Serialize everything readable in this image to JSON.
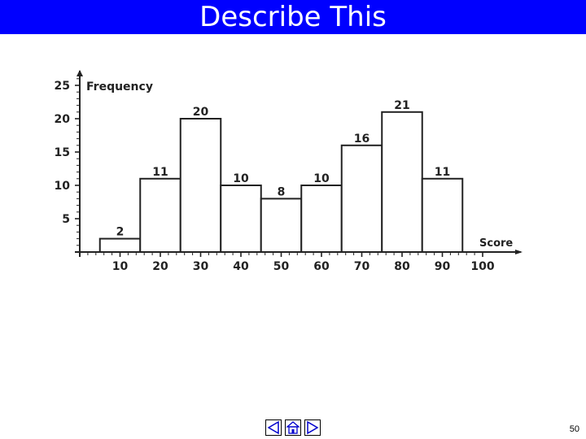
{
  "slide": {
    "title": "Describe This",
    "page_number": "50"
  },
  "nav": {
    "prev_icon": "triangle-left-icon",
    "home_icon": "home-icon",
    "next_icon": "triangle-right-icon"
  },
  "chart_data": {
    "type": "bar",
    "title": "",
    "xlabel": "Score",
    "ylabel": "Frequency",
    "bin_edges": [
      5,
      15,
      25,
      35,
      45,
      55,
      65,
      75,
      85,
      95
    ],
    "values": [
      2,
      11,
      20,
      10,
      8,
      10,
      16,
      21,
      11
    ],
    "x_ticks": [
      10,
      20,
      30,
      40,
      50,
      60,
      70,
      80,
      90,
      100
    ],
    "y_ticks": [
      5,
      10,
      15,
      20,
      25
    ],
    "xlim": [
      0,
      100
    ],
    "ylim": [
      0,
      25
    ],
    "data_labels": [
      "2",
      "11",
      "20",
      "10",
      "8",
      "10",
      "16",
      "21",
      "11"
    ],
    "grid": false,
    "bar_fill": "#ffffff",
    "bar_stroke": "#222222"
  }
}
